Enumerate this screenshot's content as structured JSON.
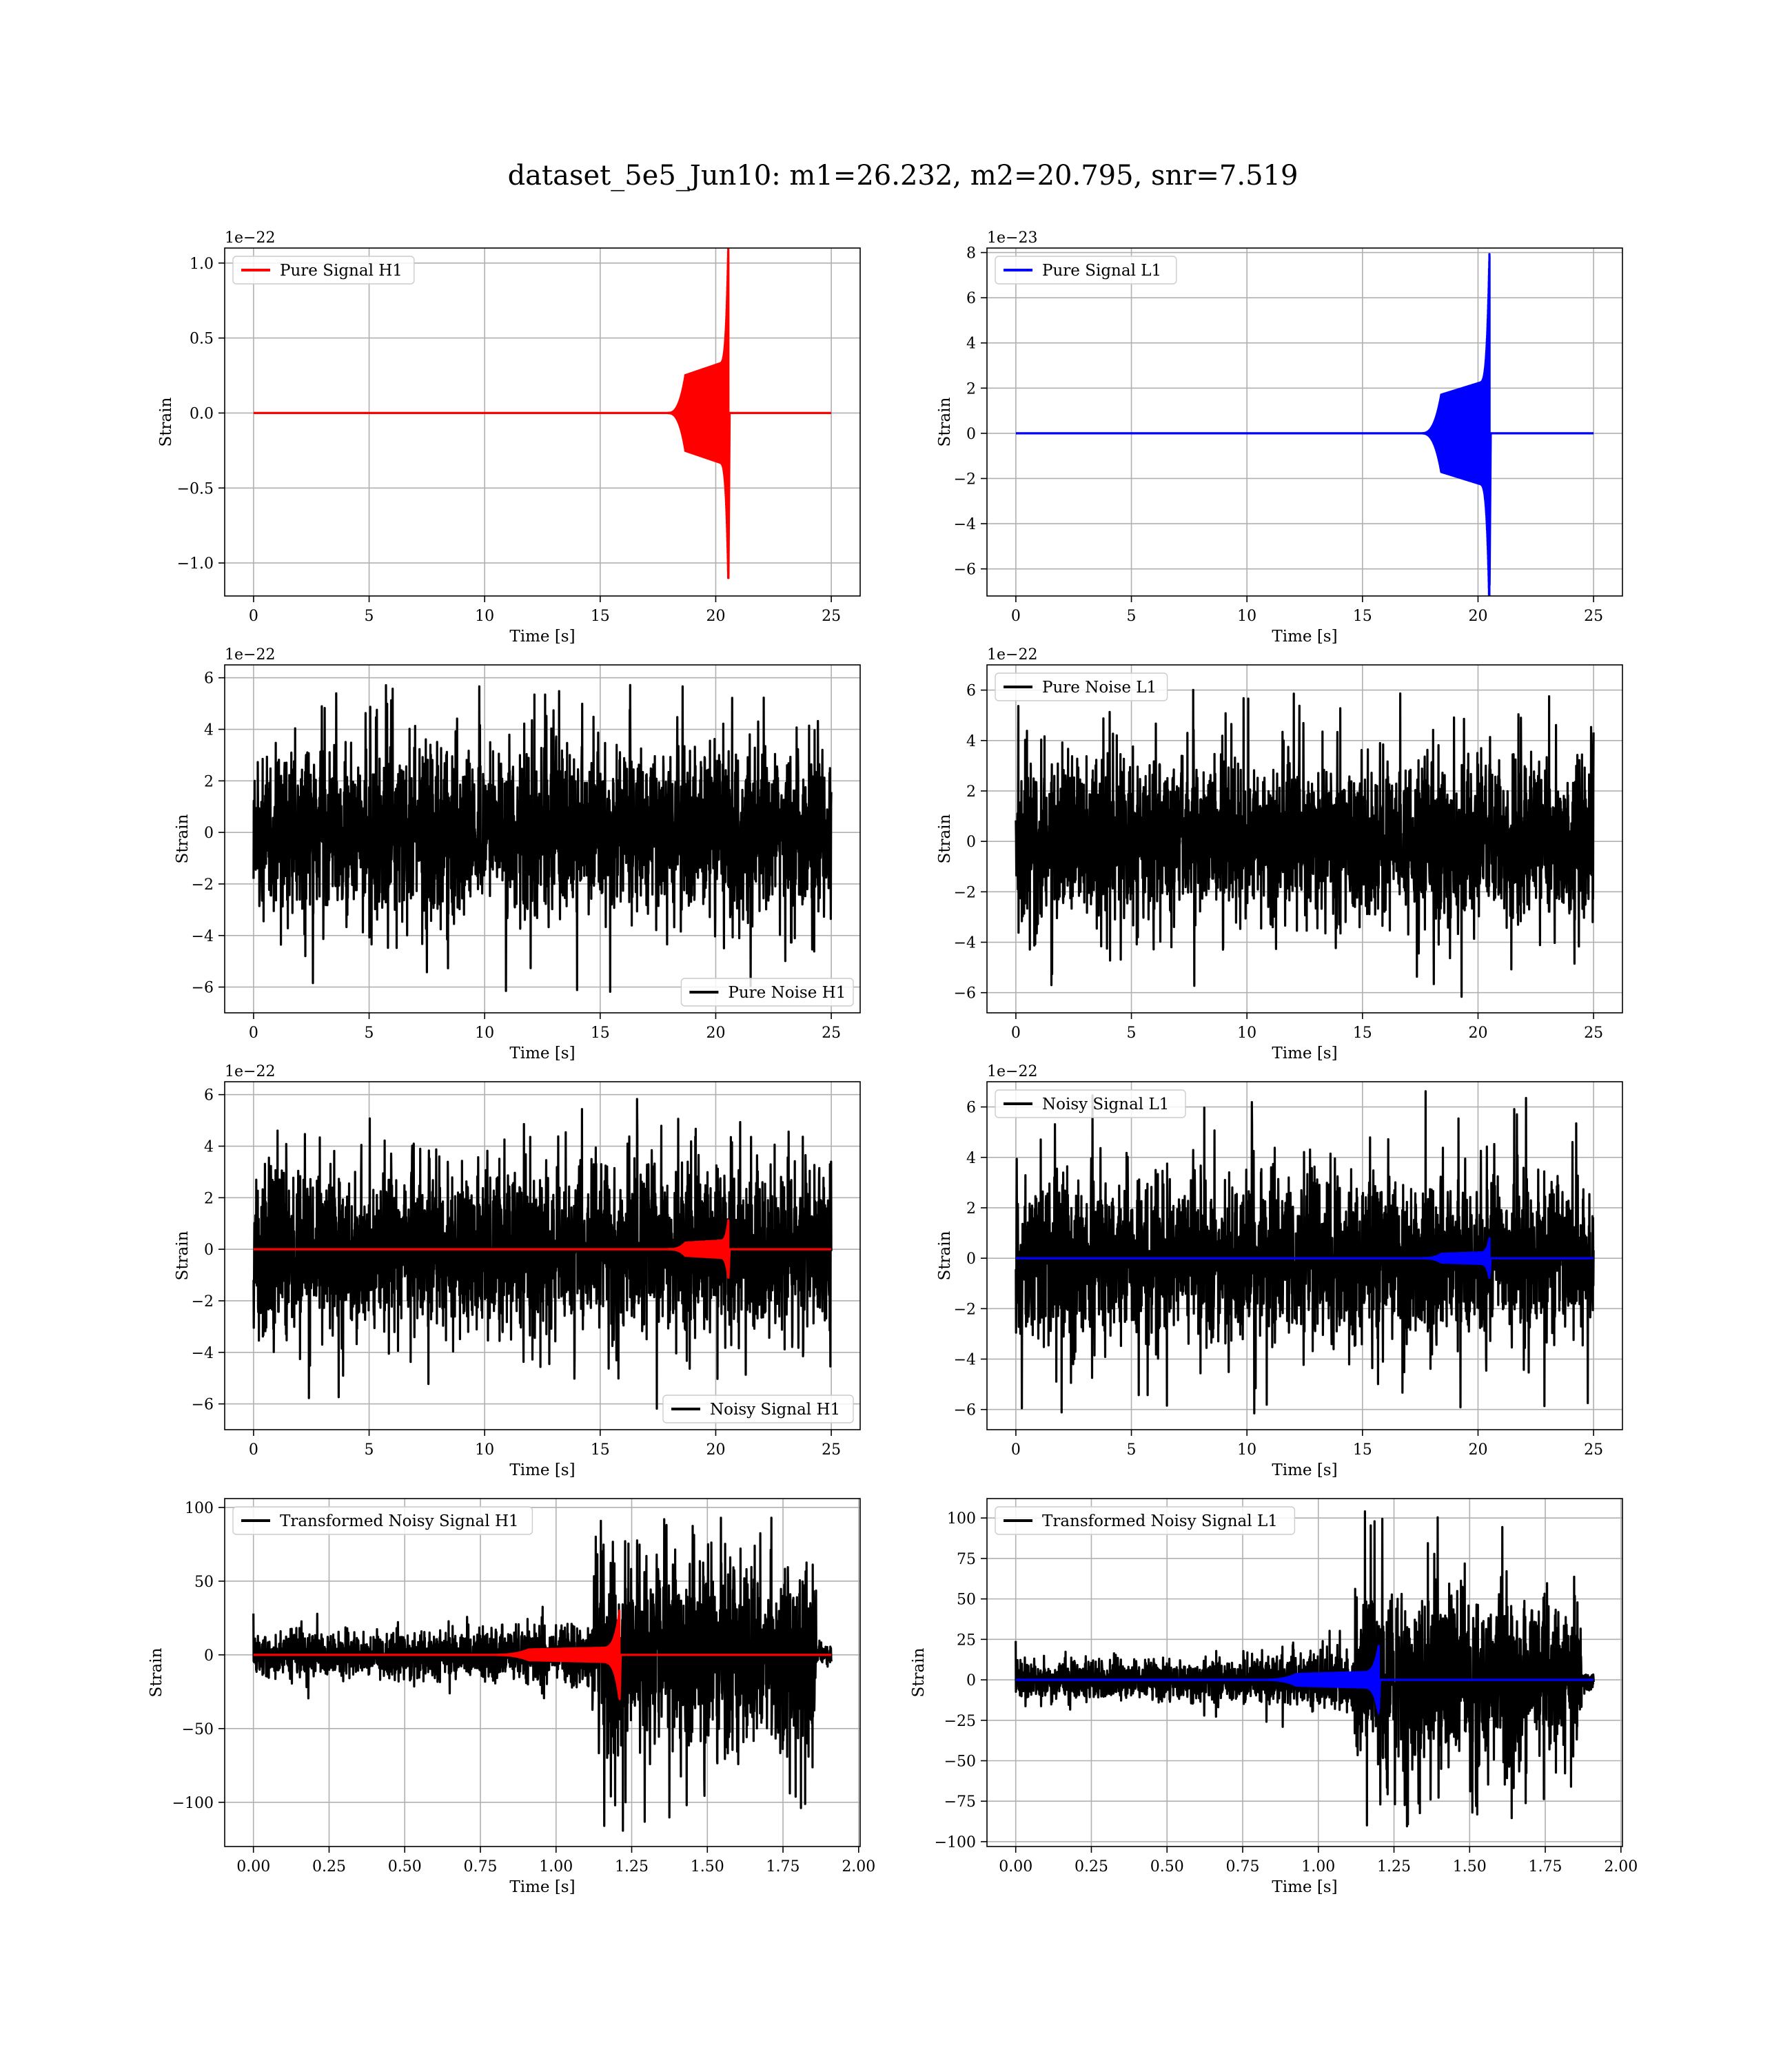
{
  "figure": {
    "title": "dataset_5e5_Jun10: m1=26.232, m2=20.795, snr=7.519"
  },
  "colors": {
    "h1_signal": "#ff0000",
    "l1_signal": "#0000ff",
    "noise": "#000000",
    "grid": "#b0b0b0"
  },
  "chart_data": [
    {
      "id": "p1",
      "type": "line",
      "xlabel": "Time [s]",
      "ylabel": "Strain",
      "offset_text": "1e−22",
      "xlim": [
        -1.25,
        26.25
      ],
      "ylim": [
        -1.22,
        1.1
      ],
      "xticks": [
        0,
        5,
        10,
        15,
        20,
        25
      ],
      "xtick_labels": [
        "0",
        "5",
        "10",
        "15",
        "20",
        "25"
      ],
      "yticks": [
        -1.0,
        -0.5,
        0.0,
        0.5,
        1.0
      ],
      "ytick_labels": [
        "−1.0",
        "−0.5",
        "0.0",
        "0.5",
        "1.0"
      ],
      "legend": {
        "position": "upper-left",
        "entries": [
          {
            "label": "Pure Signal H1",
            "color": "#ff0000"
          }
        ]
      },
      "series": [
        {
          "name": "Pure Signal H1",
          "kind": "chirp",
          "color": "#ff0000",
          "t_start": 0,
          "t_end": 25,
          "t_merger": 20.55,
          "t_onset": 18.5,
          "envelope_mid": 0.28,
          "peak_pos": 1.03,
          "peak_neg": -1.1
        }
      ]
    },
    {
      "id": "p2",
      "type": "line",
      "xlabel": "Time [s]",
      "ylabel": "Strain",
      "offset_text": "1e−23",
      "xlim": [
        -1.25,
        26.25
      ],
      "ylim": [
        -7.2,
        8.2
      ],
      "xticks": [
        0,
        5,
        10,
        15,
        20,
        25
      ],
      "xtick_labels": [
        "0",
        "5",
        "10",
        "15",
        "20",
        "25"
      ],
      "yticks": [
        -6,
        -4,
        -2,
        0,
        2,
        4,
        6,
        8
      ],
      "ytick_labels": [
        "−6",
        "−4",
        "−2",
        "0",
        "2",
        "4",
        "6",
        "8"
      ],
      "legend": {
        "position": "upper-left",
        "entries": [
          {
            "label": "Pure Signal L1",
            "color": "#0000ff"
          }
        ]
      },
      "series": [
        {
          "name": "Pure Signal L1",
          "kind": "chirp",
          "color": "#0000ff",
          "t_start": 0,
          "t_end": 25,
          "t_merger": 20.5,
          "t_onset": 18.2,
          "envelope_mid": 1.9,
          "peak_pos": 7.8,
          "peak_neg": -6.7
        }
      ]
    },
    {
      "id": "p3",
      "type": "line",
      "xlabel": "Time [s]",
      "ylabel": "Strain",
      "offset_text": "1e−22",
      "xlim": [
        -1.25,
        26.25
      ],
      "ylim": [
        -7.0,
        6.5
      ],
      "xticks": [
        0,
        5,
        10,
        15,
        20,
        25
      ],
      "xtick_labels": [
        "0",
        "5",
        "10",
        "15",
        "20",
        "25"
      ],
      "yticks": [
        -6,
        -4,
        -2,
        0,
        2,
        4,
        6
      ],
      "ytick_labels": [
        "−6",
        "−4",
        "−2",
        "0",
        "2",
        "4",
        "6"
      ],
      "legend": {
        "position": "lower-right",
        "entries": [
          {
            "label": "Pure Noise H1",
            "color": "#000000"
          }
        ]
      },
      "series": [
        {
          "name": "Pure Noise H1",
          "kind": "noise",
          "color": "#000000",
          "t_start": 0,
          "t_end": 25,
          "band_pos": 3.3,
          "band_neg": -3.3,
          "spike_max": 5.9,
          "spike_min": -6.4
        }
      ]
    },
    {
      "id": "p4",
      "type": "line",
      "xlabel": "Time [s]",
      "ylabel": "Strain",
      "offset_text": "1e−22",
      "xlim": [
        -1.25,
        26.25
      ],
      "ylim": [
        -6.8,
        7.0
      ],
      "xticks": [
        0,
        5,
        10,
        15,
        20,
        25
      ],
      "xtick_labels": [
        "0",
        "5",
        "10",
        "15",
        "20",
        "25"
      ],
      "yticks": [
        -6,
        -4,
        -2,
        0,
        2,
        4,
        6
      ],
      "ytick_labels": [
        "−6",
        "−4",
        "−2",
        "0",
        "2",
        "4",
        "6"
      ],
      "legend": {
        "position": "upper-left",
        "entries": [
          {
            "label": "Pure Noise L1",
            "color": "#000000"
          }
        ]
      },
      "series": [
        {
          "name": "Pure Noise L1",
          "kind": "noise",
          "color": "#000000",
          "t_start": 0,
          "t_end": 25,
          "band_pos": 3.3,
          "band_neg": -3.3,
          "spike_max": 6.7,
          "spike_min": -6.2
        }
      ]
    },
    {
      "id": "p5",
      "type": "line",
      "xlabel": "Time [s]",
      "ylabel": "Strain",
      "offset_text": "1e−22",
      "xlim": [
        -1.25,
        26.25
      ],
      "ylim": [
        -7.0,
        6.5
      ],
      "xticks": [
        0,
        5,
        10,
        15,
        20,
        25
      ],
      "xtick_labels": [
        "0",
        "5",
        "10",
        "15",
        "20",
        "25"
      ],
      "yticks": [
        -6,
        -4,
        -2,
        0,
        2,
        4,
        6
      ],
      "ytick_labels": [
        "−6",
        "−4",
        "−2",
        "0",
        "2",
        "4",
        "6"
      ],
      "legend": {
        "position": "lower-right",
        "entries": [
          {
            "label": "Noisy Signal H1",
            "color": "#000000"
          }
        ]
      },
      "series": [
        {
          "name": "Noisy Signal H1",
          "kind": "noise",
          "color": "#000000",
          "t_start": 0,
          "t_end": 25,
          "band_pos": 3.3,
          "band_neg": -3.3,
          "spike_max": 5.9,
          "spike_min": -6.4
        },
        {
          "kind": "chirp",
          "color": "#ff0000",
          "t_start": 0,
          "t_end": 25,
          "t_merger": 20.55,
          "t_onset": 18.5,
          "envelope_mid": 0.28,
          "peak_pos": 1.03,
          "peak_neg": -1.1
        }
      ]
    },
    {
      "id": "p6",
      "type": "line",
      "xlabel": "Time [s]",
      "ylabel": "Strain",
      "offset_text": "1e−22",
      "xlim": [
        -1.25,
        26.25
      ],
      "ylim": [
        -6.8,
        7.0
      ],
      "xticks": [
        0,
        5,
        10,
        15,
        20,
        25
      ],
      "xtick_labels": [
        "0",
        "5",
        "10",
        "15",
        "20",
        "25"
      ],
      "yticks": [
        -6,
        -4,
        -2,
        0,
        2,
        4,
        6
      ],
      "ytick_labels": [
        "−6",
        "−4",
        "−2",
        "0",
        "2",
        "4",
        "6"
      ],
      "legend": {
        "position": "upper-left",
        "entries": [
          {
            "label": "Noisy Signal L1",
            "color": "#000000"
          }
        ]
      },
      "series": [
        {
          "name": "Noisy Signal L1",
          "kind": "noise",
          "color": "#000000",
          "t_start": 0,
          "t_end": 25,
          "band_pos": 3.3,
          "band_neg": -3.3,
          "spike_max": 6.7,
          "spike_min": -6.2
        },
        {
          "kind": "chirp",
          "color": "#0000ff",
          "t_start": 0,
          "t_end": 25,
          "t_merger": 20.5,
          "t_onset": 18.2,
          "envelope_mid": 0.19,
          "peak_pos": 0.78,
          "peak_neg": -0.67
        }
      ]
    },
    {
      "id": "p7",
      "type": "line",
      "xlabel": "Time [s]",
      "ylabel": "Strain",
      "offset_text": "",
      "xlim": [
        -0.095,
        2.005
      ],
      "ylim": [
        -130,
        106
      ],
      "xticks": [
        0,
        0.25,
        0.5,
        0.75,
        1.0,
        1.25,
        1.5,
        1.75,
        2.0
      ],
      "xtick_labels": [
        "0.00",
        "0.25",
        "0.50",
        "0.75",
        "1.00",
        "1.25",
        "1.50",
        "1.75",
        "2.00"
      ],
      "yticks": [
        -100,
        -50,
        0,
        50,
        100
      ],
      "ytick_labels": [
        "−100",
        "−50",
        "0",
        "50",
        "100"
      ],
      "legend": {
        "position": "upper-left",
        "entries": [
          {
            "label": "Transformed Noisy Signal H1",
            "color": "#000000"
          }
        ]
      },
      "series": [
        {
          "name": "Transformed Noisy Signal H1",
          "kind": "whitened",
          "color": "#000000",
          "t_start": 0,
          "t_end": 1.91,
          "t_jump": 1.12,
          "t_drop": 1.86,
          "pre_amp": 7,
          "post_pos": 62,
          "post_neg": -65,
          "spike_max": 93,
          "spike_min": -120
        },
        {
          "kind": "chirp",
          "color": "#ff0000",
          "t_start": 0,
          "t_end": 1.91,
          "t_merger": 1.21,
          "t_onset": 0.88,
          "envelope_mid": 4,
          "peak_pos": 30,
          "peak_neg": -30
        }
      ]
    },
    {
      "id": "p8",
      "type": "line",
      "xlabel": "Time [s]",
      "ylabel": "Strain",
      "offset_text": "",
      "xlim": [
        -0.095,
        2.005
      ],
      "ylim": [
        -103,
        112
      ],
      "xticks": [
        0,
        0.25,
        0.5,
        0.75,
        1.0,
        1.25,
        1.5,
        1.75,
        2.0
      ],
      "xtick_labels": [
        "0.00",
        "0.25",
        "0.50",
        "0.75",
        "1.00",
        "1.25",
        "1.50",
        "1.75",
        "2.00"
      ],
      "yticks": [
        -100,
        -75,
        -50,
        -25,
        0,
        25,
        50,
        75,
        100
      ],
      "ytick_labels": [
        "−100",
        "−75",
        "−50",
        "−25",
        "0",
        "25",
        "50",
        "75",
        "100"
      ],
      "legend": {
        "position": "upper-left",
        "entries": [
          {
            "label": "Transformed Noisy Signal L1",
            "color": "#000000"
          }
        ]
      },
      "series": [
        {
          "name": "Transformed Noisy Signal L1",
          "kind": "whitened",
          "color": "#000000",
          "t_start": 0,
          "t_end": 1.91,
          "t_jump": 1.12,
          "t_drop": 1.87,
          "pre_amp": 6,
          "post_pos": 55,
          "post_neg": -55,
          "spike_max": 105,
          "spike_min": -93
        },
        {
          "kind": "chirp",
          "color": "#0000ff",
          "t_start": 0,
          "t_end": 1.91,
          "t_merger": 1.2,
          "t_onset": 0.9,
          "envelope_mid": 4,
          "peak_pos": 21,
          "peak_neg": -18
        }
      ]
    }
  ]
}
